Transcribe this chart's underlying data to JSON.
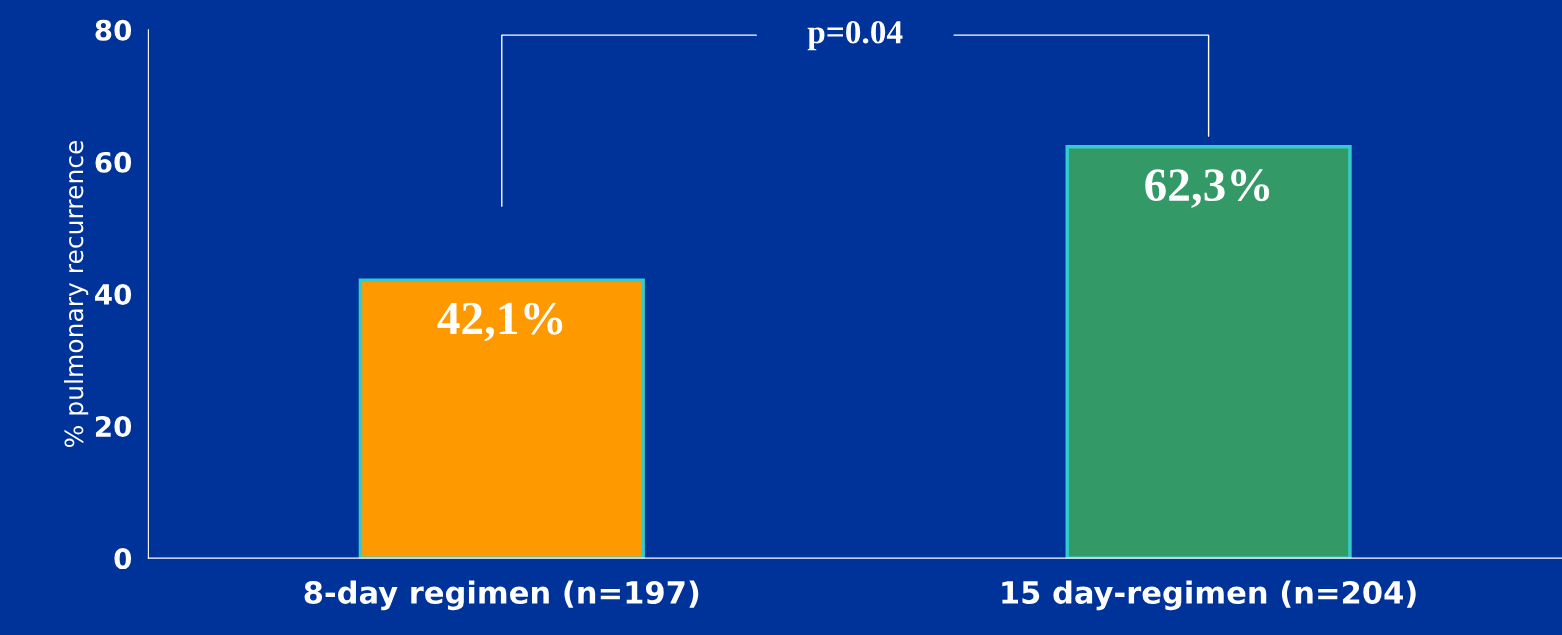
{
  "chart_data": {
    "type": "bar",
    "categories": [
      "8-day regimen (n=197)",
      "15 day-regimen (n=204)"
    ],
    "values": [
      42.1,
      62.3
    ],
    "colors": [
      "#ff9900",
      "#339966"
    ],
    "value_labels": [
      "42,1%",
      "62,3%"
    ],
    "ylabel": "% pulmonary recurrence",
    "ylim": [
      0,
      80
    ],
    "yticks": [
      0,
      20,
      40,
      60,
      80
    ],
    "annotations": [
      "p=0.04"
    ],
    "grid": false
  }
}
